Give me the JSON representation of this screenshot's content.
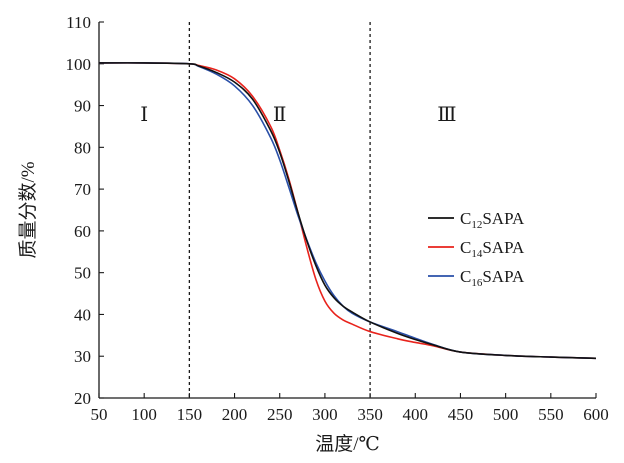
{
  "chart_data": {
    "type": "line",
    "title": "",
    "xlabel": "温度/℃",
    "ylabel": "质量分数/%",
    "xlim": [
      50,
      600
    ],
    "ylim": [
      20,
      110
    ],
    "xticks": [
      50,
      100,
      150,
      200,
      250,
      300,
      350,
      400,
      450,
      500,
      550,
      600
    ],
    "yticks": [
      20,
      30,
      40,
      50,
      60,
      70,
      80,
      90,
      100,
      110
    ],
    "grid": false,
    "legend_position": "right",
    "divider_lines_x": [
      150,
      350
    ],
    "regions": [
      {
        "label": "Ⅰ",
        "x": 100,
        "y": 88
      },
      {
        "label": "Ⅱ",
        "x": 250,
        "y": 88
      },
      {
        "label": "Ⅲ",
        "x": 435,
        "y": 88
      }
    ],
    "series": [
      {
        "name": "C12SAPA",
        "name_main": "C",
        "name_sub": "12",
        "name_tail": "SAPA",
        "color": "#111111",
        "x": [
          50,
          100,
          150,
          160,
          180,
          200,
          220,
          240,
          250,
          260,
          270,
          280,
          290,
          300,
          310,
          320,
          330,
          350,
          380,
          400,
          420,
          450,
          500,
          550,
          600
        ],
        "y": [
          100.2,
          100.2,
          100.0,
          99.5,
          97.9,
          95.6,
          91.5,
          84.0,
          78.8,
          72.0,
          64.5,
          57.6,
          51.7,
          47.0,
          44.0,
          42.0,
          40.6,
          38.2,
          35.5,
          34.0,
          32.7,
          31.0,
          30.2,
          29.8,
          29.5
        ]
      },
      {
        "name": "C14SAPA",
        "name_main": "C",
        "name_sub": "14",
        "name_tail": "SAPA",
        "color": "#e8231c",
        "x": [
          50,
          100,
          150,
          160,
          180,
          200,
          220,
          240,
          250,
          260,
          270,
          280,
          290,
          300,
          310,
          320,
          330,
          350,
          380,
          400,
          420,
          450,
          500,
          550,
          600
        ],
        "y": [
          100.2,
          100.2,
          100.0,
          99.6,
          98.5,
          96.4,
          92.2,
          85.0,
          79.3,
          72.5,
          64.5,
          56.0,
          48.4,
          43.2,
          40.3,
          38.7,
          37.7,
          35.9,
          34.2,
          33.3,
          32.5,
          31.0,
          30.2,
          29.8,
          29.5
        ]
      },
      {
        "name": "C16SAPA",
        "name_main": "C",
        "name_sub": "16",
        "name_tail": "SAPA",
        "color": "#2a4fa8",
        "x": [
          50,
          100,
          150,
          160,
          180,
          200,
          220,
          240,
          250,
          260,
          270,
          280,
          290,
          300,
          310,
          320,
          330,
          350,
          380,
          400,
          420,
          450,
          500,
          550,
          600
        ],
        "y": [
          100.2,
          100.2,
          100.0,
          99.4,
          97.5,
          94.7,
          90.0,
          82.3,
          77.0,
          70.5,
          63.8,
          57.8,
          52.4,
          48.0,
          44.5,
          42.0,
          40.3,
          38.2,
          35.9,
          34.3,
          32.8,
          31.0,
          30.2,
          29.8,
          29.5
        ]
      }
    ]
  }
}
